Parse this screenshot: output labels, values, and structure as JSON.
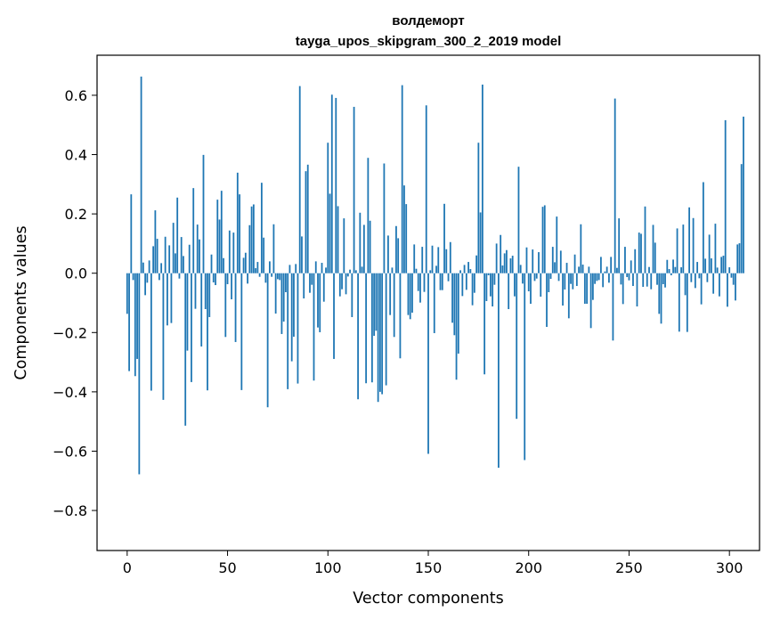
{
  "chart_data": {
    "type": "bar",
    "title": "волдеморт",
    "subtitle": "tayga_upos_skipgram_300_2_2019 model",
    "xlabel": "Vector components",
    "ylabel": "Components values",
    "xlim": [
      -15,
      315
    ],
    "ylim": [
      -0.935,
      0.735
    ],
    "xticks": [
      0,
      50,
      100,
      150,
      200,
      250,
      300
    ],
    "yticks": [
      -0.8,
      -0.6,
      -0.4,
      -0.2,
      0.0,
      0.2,
      0.4,
      0.6
    ],
    "ytick_labels": [
      "−0.8",
      "−0.6",
      "−0.4",
      "−0.2",
      "0.0",
      "0.2",
      "0.4",
      "0.6"
    ],
    "bar_color": "#1f77b4",
    "series": [
      {
        "name": "components",
        "values": [
          -0.137,
          -0.33,
          0.266,
          -0.023,
          -0.347,
          -0.289,
          -0.678,
          0.663,
          0.036,
          -0.074,
          -0.032,
          0.043,
          -0.396,
          0.091,
          0.212,
          0.116,
          -0.023,
          0.034,
          -0.427,
          0.123,
          -0.176,
          0.094,
          -0.168,
          0.17,
          0.067,
          0.255,
          -0.018,
          0.122,
          0.058,
          -0.514,
          -0.261,
          0.096,
          -0.367,
          0.287,
          -0.12,
          0.164,
          0.114,
          -0.247,
          0.399,
          -0.121,
          -0.395,
          -0.148,
          0.063,
          -0.031,
          -0.04,
          0.248,
          0.181,
          0.278,
          0.051,
          -0.215,
          -0.037,
          0.144,
          -0.088,
          0.137,
          -0.232,
          0.339,
          0.266,
          -0.394,
          0.052,
          0.069,
          -0.035,
          0.162,
          0.225,
          0.232,
          0.017,
          0.038,
          -0.012,
          0.305,
          0.12,
          -0.032,
          -0.452,
          0.04,
          -0.012,
          0.165,
          -0.136,
          -0.02,
          -0.023,
          -0.205,
          -0.163,
          -0.064,
          -0.391,
          0.028,
          -0.297,
          -0.214,
          0.031,
          -0.372,
          0.631,
          0.124,
          -0.085,
          0.344,
          0.366,
          -0.066,
          -0.039,
          -0.362,
          0.04,
          -0.183,
          -0.199,
          0.035,
          -0.096,
          0.019,
          0.44,
          0.268,
          0.602,
          -0.289,
          0.591,
          0.226,
          -0.078,
          -0.054,
          0.185,
          -0.071,
          -0.011,
          0.012,
          -0.148,
          0.561,
          0.01,
          -0.425,
          0.204,
          0.022,
          0.163,
          -0.371,
          0.389,
          0.177,
          -0.368,
          -0.211,
          -0.194,
          -0.434,
          -0.4,
          -0.408,
          0.37,
          -0.378,
          0.127,
          -0.141,
          0.019,
          -0.215,
          0.159,
          0.118,
          -0.287,
          0.634,
          0.296,
          0.233,
          -0.141,
          -0.155,
          -0.133,
          0.097,
          0.015,
          -0.06,
          -0.099,
          0.089,
          -0.063,
          0.566,
          -0.609,
          0.01,
          0.093,
          -0.202,
          0.025,
          0.088,
          -0.057,
          -0.057,
          0.234,
          0.081,
          -0.027,
          0.105,
          -0.167,
          -0.209,
          -0.359,
          -0.271,
          0.01,
          -0.077,
          0.028,
          -0.056,
          0.038,
          0.014,
          -0.108,
          -0.066,
          0.06,
          0.44,
          0.205,
          0.636,
          -0.341,
          -0.094,
          -0.007,
          -0.078,
          -0.112,
          -0.039,
          0.1,
          -0.656,
          0.129,
          0.026,
          0.067,
          0.078,
          -0.121,
          0.05,
          0.059,
          -0.078,
          -0.491,
          0.359,
          0.028,
          -0.035,
          -0.63,
          0.087,
          -0.061,
          -0.103,
          0.08,
          -0.026,
          -0.018,
          0.071,
          -0.079,
          0.224,
          0.229,
          -0.181,
          -0.064,
          -0.019,
          0.089,
          0.037,
          0.191,
          -0.026,
          0.076,
          -0.109,
          -0.055,
          0.035,
          -0.152,
          -0.036,
          -0.054,
          0.063,
          -0.043,
          0.022,
          0.165,
          0.029,
          -0.103,
          -0.103,
          0.022,
          -0.185,
          -0.09,
          -0.036,
          -0.026,
          -0.023,
          0.055,
          -0.047,
          0.006,
          0.022,
          -0.032,
          0.055,
          -0.227,
          0.589,
          0.018,
          0.185,
          -0.038,
          -0.104,
          0.089,
          -0.013,
          -0.024,
          0.043,
          -0.043,
          0.081,
          -0.112,
          0.137,
          0.133,
          -0.046,
          0.225,
          -0.045,
          0.021,
          -0.054,
          0.163,
          0.103,
          -0.039,
          -0.137,
          -0.17,
          -0.037,
          -0.048,
          0.045,
          0.014,
          -0.007,
          0.046,
          0.021,
          0.151,
          -0.197,
          0.02,
          0.164,
          -0.074,
          -0.198,
          0.222,
          -0.03,
          0.186,
          -0.05,
          0.038,
          -0.017,
          -0.105,
          0.307,
          0.049,
          -0.03,
          0.13,
          0.05,
          -0.069,
          0.167,
          0.019,
          -0.078,
          0.055,
          0.059,
          0.516,
          -0.113,
          0.02,
          -0.015,
          -0.039,
          -0.092,
          0.097,
          0.101,
          0.368,
          0.528
        ]
      }
    ]
  }
}
